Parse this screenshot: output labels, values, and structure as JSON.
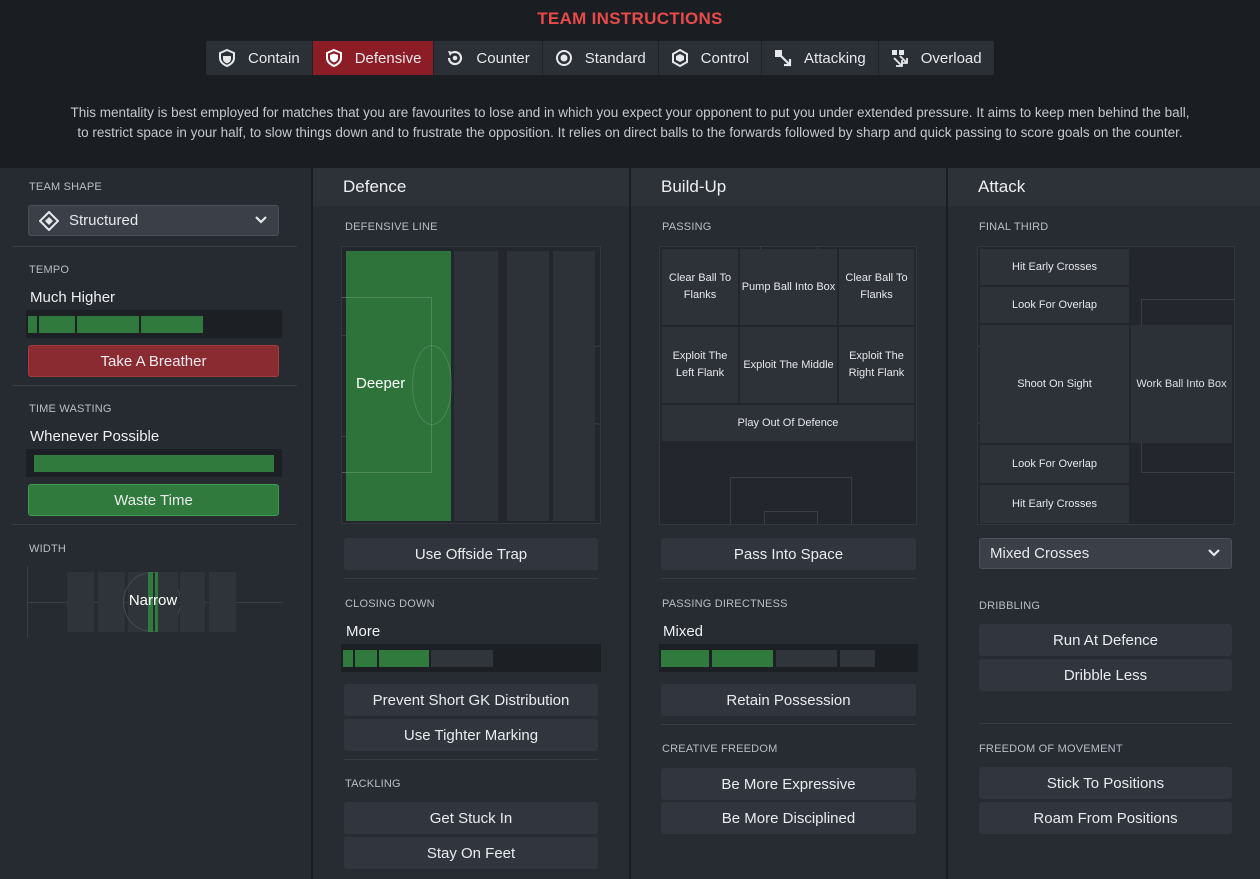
{
  "header": {
    "title": "TEAM INSTRUCTIONS",
    "tabs": [
      {
        "label": "Contain",
        "icon": "contain-icon"
      },
      {
        "label": "Defensive",
        "icon": "defensive-icon",
        "active": true
      },
      {
        "label": "Counter",
        "icon": "counter-icon"
      },
      {
        "label": "Standard",
        "icon": "standard-icon"
      },
      {
        "label": "Control",
        "icon": "control-icon"
      },
      {
        "label": "Attacking",
        "icon": "attacking-icon"
      },
      {
        "label": "Overload",
        "icon": "overload-icon"
      }
    ],
    "description_line1": "This mentality is best employed for matches that you are favourites to lose and in which you expect your opponent to put you under extended pressure. It aims to keep men behind the ball,",
    "description_line2": "to restrict space in your half, to slow things down and to frustrate the opposition. It relies on direct balls to the forwards followed by sharp and quick passing to score goals on the counter."
  },
  "colors": {
    "accent_red": "#e84a4a",
    "active_tab": "#8c1c26",
    "active_green": "#2f7a3c"
  },
  "left": {
    "team_shape_label": "TEAM SHAPE",
    "team_shape_value": "Structured",
    "tempo_label": "TEMPO",
    "tempo_value": "Much Higher",
    "tempo_level": 0.62,
    "tempo_button": "Take A Breather",
    "time_wasting_label": "TIME WASTING",
    "time_wasting_value": "Whenever Possible",
    "time_wasting_level": 1.0,
    "time_wasting_button": "Waste Time",
    "width_label": "WIDTH",
    "width_value": "Narrow"
  },
  "defence": {
    "heading": "Defence",
    "defensive_line_label": "DEFENSIVE LINE",
    "defensive_line_value": "Deeper",
    "offside_button": "Use Offside Trap",
    "closing_down_label": "CLOSING DOWN",
    "closing_down_value": "More",
    "closing_down_level": 0.57,
    "gk_button": "Prevent Short GK Distribution",
    "marking_button": "Use Tighter Marking",
    "tackling_label": "TACKLING",
    "tackle_in_button": "Get Stuck In",
    "tackle_feet_button": "Stay On Feet"
  },
  "buildup": {
    "heading": "Build-Up",
    "passing_label": "PASSING",
    "cells": {
      "clear_left": "Clear Ball To Flanks",
      "pump": "Pump Ball Into Box",
      "clear_right": "Clear Ball To Flanks",
      "exploit_left": "Exploit The Left Flank",
      "exploit_middle": "Exploit The Middle",
      "exploit_right": "Exploit The Right Flank",
      "play_out": "Play Out Of Defence"
    },
    "space_button": "Pass Into Space",
    "directness_label": "PASSING DIRECTNESS",
    "directness_value": "Mixed",
    "directness_level": 0.5,
    "possession_button": "Retain Possession",
    "creative_label": "CREATIVE FREEDOM",
    "expressive_button": "Be More Expressive",
    "disciplined_button": "Be More Disciplined"
  },
  "attack": {
    "heading": "Attack",
    "final_third_label": "FINAL THIRD",
    "cells": {
      "hit_early_top": "Hit Early Crosses",
      "overlap_top": "Look For Overlap",
      "shoot": "Shoot On Sight",
      "work_ball": "Work Ball Into Box",
      "overlap_bottom": "Look For Overlap",
      "hit_early_bottom": "Hit Early Crosses"
    },
    "crossing_value": "Mixed Crosses",
    "dribbling_label": "DRIBBLING",
    "run_button": "Run At Defence",
    "dribble_button": "Dribble Less",
    "freedom_label": "FREEDOM OF MOVEMENT",
    "stick_button": "Stick To Positions",
    "roam_button": "Roam From Positions"
  }
}
